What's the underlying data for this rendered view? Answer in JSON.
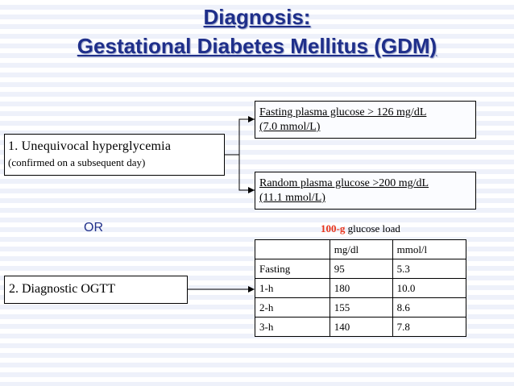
{
  "title": {
    "line1": "Diagnosis:",
    "line2": "Gestational Diabetes Mellitus (GDM)"
  },
  "hyperglycemia_box": {
    "line1": "1. Unequivocal hyperglycemia",
    "line2": "(confirmed on a subsequent day)"
  },
  "fasting_box": {
    "line1": "Fasting plasma glucose > 126 mg/dL",
    "line2": "(7.0 mmol/L)"
  },
  "random_box": {
    "line1": "Random plasma glucose >200 mg/dL",
    "line2": "(11.1 mmol/L)"
  },
  "or_label": "OR",
  "ogtt_box": {
    "label": "2. Diagnostic OGTT"
  },
  "glucose_load": {
    "amount": "100-g",
    "text": " glucose load"
  },
  "ogtt_table": {
    "headers": [
      "",
      "mg/dl",
      "mmol/l"
    ],
    "rows": [
      [
        "Fasting",
        "95",
        "5.3"
      ],
      [
        "1-h",
        "180",
        "10.0"
      ],
      [
        "2-h",
        "155",
        "8.6"
      ],
      [
        "3-h",
        "140",
        "7.8"
      ]
    ]
  },
  "colors": {
    "title": "#1f2f8a",
    "or": "#1f2f8a",
    "load_amount": "#e8341c"
  }
}
